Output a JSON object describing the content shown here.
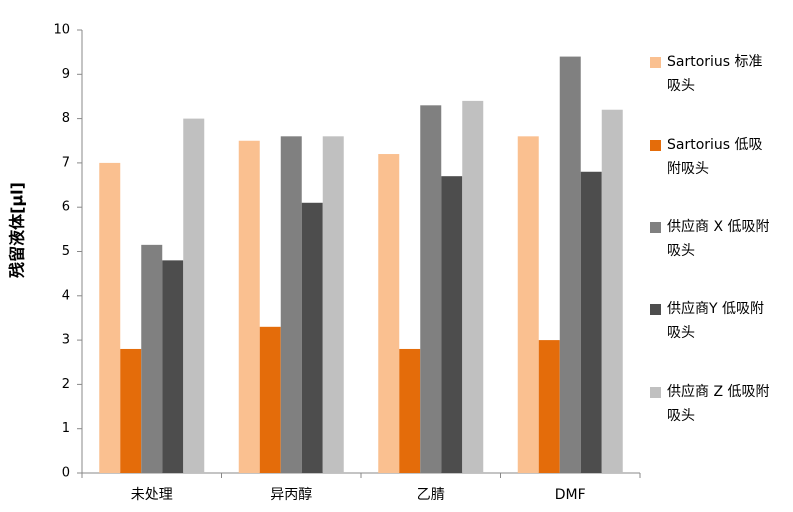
{
  "chart_data": {
    "type": "bar",
    "y_label": "残留液体[µl]",
    "categories": [
      "未处理",
      "异丙醇",
      "乙腈",
      "DMF"
    ],
    "series": [
      {
        "name": "Sartorius 标准吸头",
        "color": "#fac090",
        "values": [
          7.0,
          7.5,
          7.2,
          7.6
        ]
      },
      {
        "name": "Sartorius 低吸附吸头",
        "color": "#e46c0a",
        "values": [
          2.8,
          3.3,
          2.8,
          3.0
        ]
      },
      {
        "name": "供应商 X 低吸附吸头",
        "color": "#808080",
        "values": [
          5.15,
          7.6,
          8.3,
          9.4
        ]
      },
      {
        "name": "供应商Y 低吸附吸头",
        "color": "#4d4d4d",
        "values": [
          4.8,
          6.1,
          6.7,
          6.8
        ]
      },
      {
        "name": "供应商 Z 低吸附吸头",
        "color": "#c0c0c0",
        "values": [
          8.0,
          7.6,
          8.4,
          8.2
        ]
      }
    ],
    "ylim": [
      0,
      10
    ],
    "yticks": [
      0,
      1,
      2,
      3,
      4,
      5,
      6,
      7,
      8,
      9,
      10
    ],
    "grid": false
  }
}
